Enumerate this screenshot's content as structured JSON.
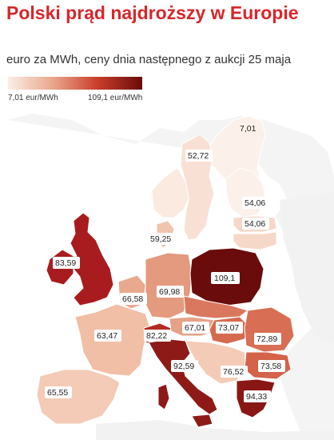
{
  "title": "Polski prąd najdroższy w Europie",
  "subtitle": "euro za MWh, ceny dnia następnego z aukcji 25 maja",
  "legend": {
    "min_label": "7,01 eur/MWh",
    "max_label": "109,1 eur/MWh",
    "min_value": 7.01,
    "max_value": 109.1,
    "color_low": "#fbeee6",
    "color_high": "#6a0c0c"
  },
  "regions": [
    {
      "id": "norway-north",
      "value_label": "7,01",
      "color": "#fbf1ea"
    },
    {
      "id": "sweden",
      "value_label": "52,72",
      "color": "#f8e1d4"
    },
    {
      "id": "finland",
      "value_label": "",
      "color": "#fbf1ea"
    },
    {
      "id": "latvia",
      "value_label": "54,06",
      "color": "#f6d8c8"
    },
    {
      "id": "lithuania",
      "value_label": "54,06",
      "color": "#f6d8c8"
    },
    {
      "id": "denmark",
      "value_label": "59,25",
      "color": "#f0c4ad"
    },
    {
      "id": "uk",
      "value_label": "83,59",
      "color": "#a81c1f"
    },
    {
      "id": "netherlands-belgium",
      "value_label": "66,58",
      "color": "#e8a98e"
    },
    {
      "id": "germany",
      "value_label": "69,98",
      "color": "#e39a7e"
    },
    {
      "id": "poland",
      "value_label": "109,1",
      "color": "#6a0c0c"
    },
    {
      "id": "france",
      "value_label": "63,47",
      "color": "#f0bfa6"
    },
    {
      "id": "switzerland",
      "value_label": "82,22",
      "color": "#b42a22"
    },
    {
      "id": "austria",
      "value_label": "67,01",
      "color": "#e6a287"
    },
    {
      "id": "hungary",
      "value_label": "73,07",
      "color": "#d66a4f"
    },
    {
      "id": "romania",
      "value_label": "72,89",
      "color": "#d86e53"
    },
    {
      "id": "bulgaria",
      "value_label": "73,58",
      "color": "#d3634a"
    },
    {
      "id": "italy",
      "value_label": "92,59",
      "color": "#8e1a18"
    },
    {
      "id": "slovenia-croatia",
      "value_label": "76,52",
      "color": "#f4cbb6"
    },
    {
      "id": "greece",
      "value_label": "94,33",
      "color": "#881716"
    },
    {
      "id": "spain",
      "value_label": "65,55",
      "color": "#f3cbb6"
    }
  ]
}
